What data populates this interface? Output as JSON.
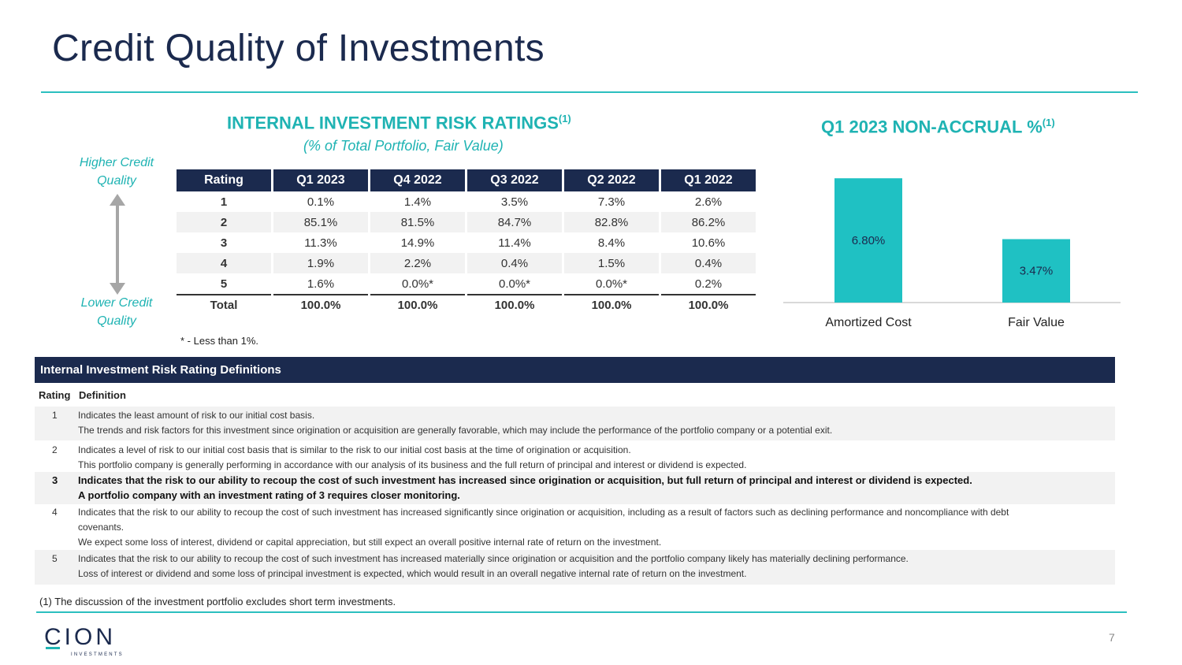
{
  "title": "Credit Quality of Investments",
  "ratings_section": {
    "heading": "INTERNAL INVESTMENT RISK RATINGS",
    "heading_note": "(1)",
    "subheading": "(% of Total Portfolio, Fair Value)",
    "higher_label": "Higher Credit Quality",
    "lower_label": "Lower Credit Quality",
    "table": {
      "headers": [
        "Rating",
        "Q1 2023",
        "Q4 2022",
        "Q3 2022",
        "Q2 2022",
        "Q1 2022"
      ],
      "rows": [
        [
          "1",
          "0.1%",
          "1.4%",
          "3.5%",
          "7.3%",
          "2.6%"
        ],
        [
          "2",
          "85.1%",
          "81.5%",
          "84.7%",
          "82.8%",
          "86.2%"
        ],
        [
          "3",
          "11.3%",
          "14.9%",
          "11.4%",
          "8.4%",
          "10.6%"
        ],
        [
          "4",
          "1.9%",
          "2.2%",
          "0.4%",
          "1.5%",
          "0.4%"
        ],
        [
          "5",
          "1.6%",
          "0.0%*",
          "0.0%*",
          "0.0%*",
          "0.2%"
        ]
      ],
      "total": [
        "Total",
        "100.0%",
        "100.0%",
        "100.0%",
        "100.0%",
        "100.0%"
      ]
    },
    "footnote": "* - Less than 1%."
  },
  "nonaccrual_section": {
    "heading": "Q1 2023 NON-ACCRUAL %",
    "heading_note": "(1)"
  },
  "chart_data": {
    "type": "bar",
    "title": "Q1 2023 NON-ACCRUAL %",
    "categories": [
      "Amortized Cost",
      "Fair Value"
    ],
    "values": [
      6.8,
      3.47
    ],
    "data_labels": [
      "6.80%",
      "3.47%"
    ],
    "ylim": [
      0,
      7.5
    ],
    "xlabel": "",
    "ylabel": "",
    "grid": false,
    "bar_color": "#1fc1c3"
  },
  "definitions": {
    "title": "Internal Investment Risk Rating Definitions",
    "col_rating": "Rating",
    "col_definition": "Definition",
    "rows": [
      {
        "num": "1",
        "lines": [
          "Indicates the least amount of risk to our initial cost basis.",
          "The trends and risk factors for this investment since origination or acquisition are generally favorable, which may include the performance of the portfolio company or a potential exit."
        ]
      },
      {
        "num": "2",
        "lines": [
          "Indicates a level of risk to our initial cost basis that is similar to the risk to our initial cost basis at the time of origination or acquisition.",
          "This portfolio company is generally performing in accordance with our analysis of its business and the full return of principal and interest or dividend is expected."
        ]
      },
      {
        "num": "3",
        "lines": [
          "Indicates that the risk to our ability to recoup the cost of such investment has increased since origination or acquisition, but full return of principal and interest or dividend is expected.",
          "A portfolio company with an investment rating of 3 requires closer monitoring."
        ]
      },
      {
        "num": "4",
        "lines": [
          "Indicates that the risk to our ability to recoup the cost of such investment has increased significantly since origination or acquisition, including as a result of factors such as declining performance and noncompliance with debt",
          "covenants.",
          "We expect some loss of interest, dividend or capital appreciation, but still expect an overall positive internal rate of return on the investment."
        ]
      },
      {
        "num": "5",
        "lines": [
          "Indicates that the risk to our ability to recoup the cost of such investment has increased materially since origination or acquisition and the portfolio company likely has materially declining performance.",
          "Loss of interest or dividend and some loss of principal investment is expected, which would result in an overall negative internal rate of return on the investment."
        ]
      }
    ]
  },
  "footnote_1": "(1)   The discussion of the investment portfolio excludes short term investments.",
  "logo": {
    "name": "CION",
    "tagline": "INVESTMENTS"
  },
  "page_number": "7",
  "colors": {
    "navy": "#1b2a4e",
    "teal": "#1fb3b3",
    "bar": "#1fc1c3"
  }
}
